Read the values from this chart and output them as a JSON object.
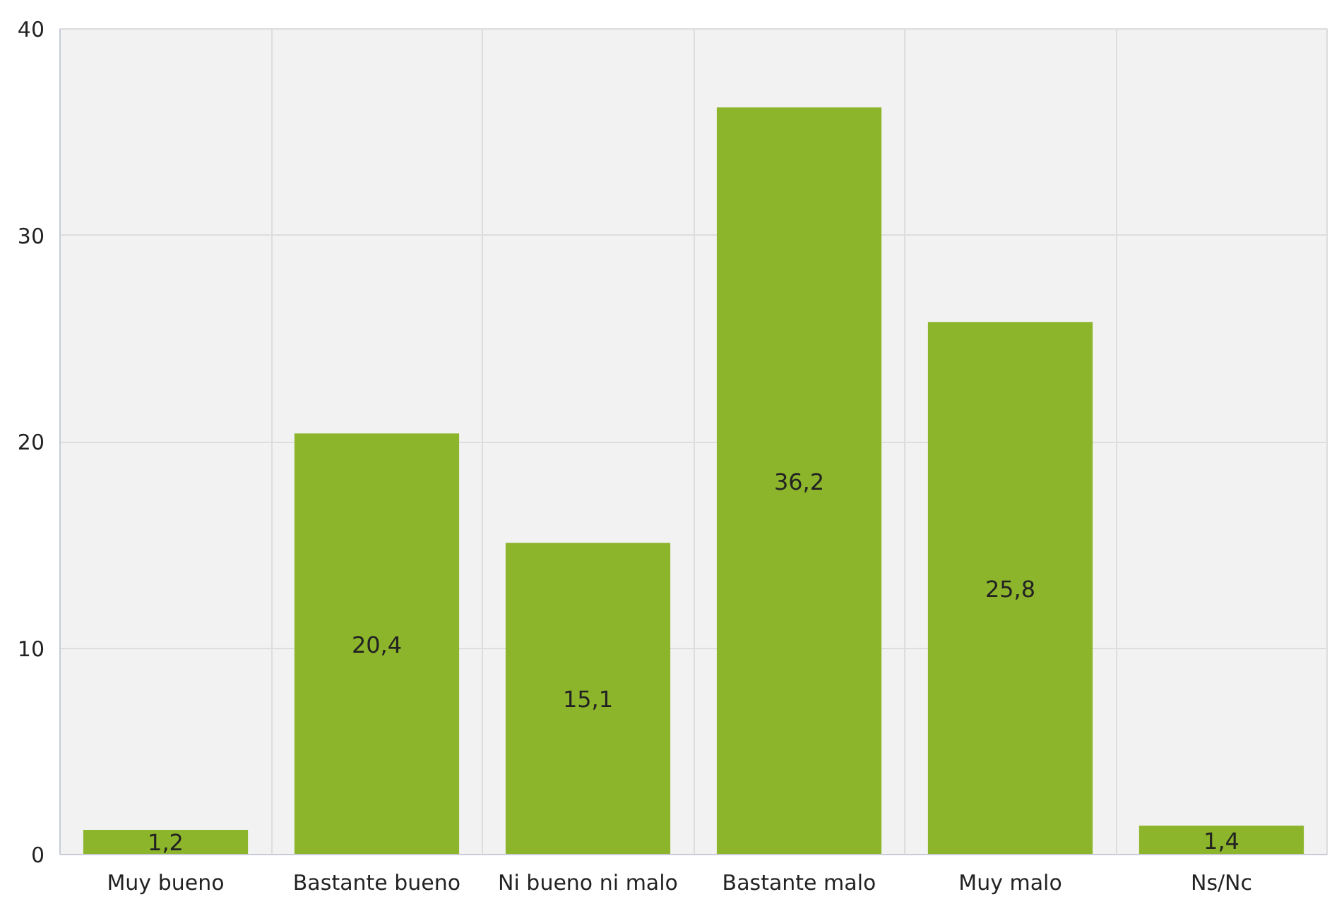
{
  "chart_data": {
    "type": "bar",
    "categories": [
      "Muy bueno",
      "Bastante bueno",
      "Ni bueno ni malo",
      "Bastante malo",
      "Muy malo",
      "Ns/Nc"
    ],
    "values": [
      1.2,
      20.4,
      15.1,
      36.2,
      25.8,
      1.4
    ],
    "value_labels": [
      "1,2",
      "20,4",
      "15,1",
      "36,2",
      "25,8",
      "1,4"
    ],
    "color": "#8db52c",
    "ylim": [
      0,
      40
    ],
    "yticks": [
      0,
      10,
      20,
      30,
      40
    ],
    "grid": true
  }
}
